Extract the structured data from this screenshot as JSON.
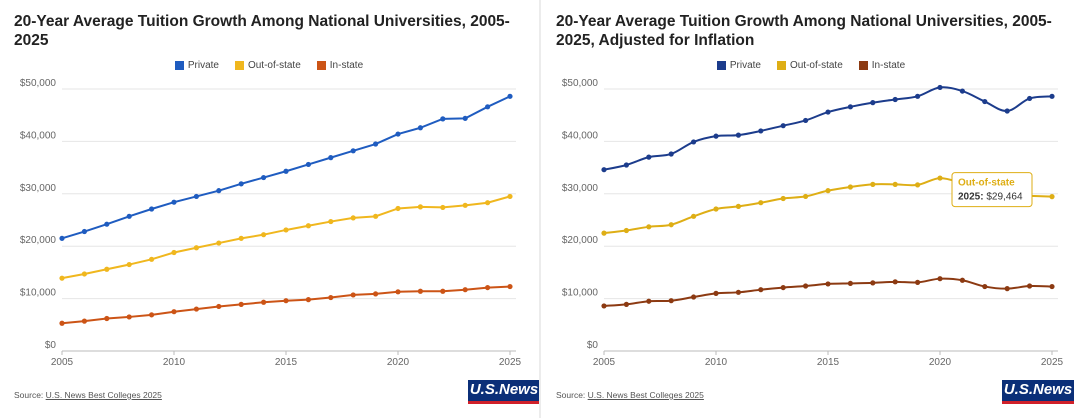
{
  "charts": [
    {
      "title": "20-Year Average Tuition Growth Among National Universities, 2005-2025",
      "source_prefix": "Source: ",
      "source_link": "U.S. News Best Colleges 2025",
      "logo": "U.S.News",
      "legend": [
        "Private",
        "Out-of-state",
        "In-state"
      ],
      "colors": {
        "private": "#1f5cc0",
        "out_of_state": "#f0b71e",
        "in_state": "#cc5416"
      }
    },
    {
      "title": "20-Year Average Tuition Growth Among National Universities, 2005-2025, Adjusted for Inflation",
      "source_prefix": "Source: ",
      "source_link": "U.S. News Best Colleges 2025",
      "logo": "U.S.News",
      "legend": [
        "Private",
        "Out-of-state",
        "In-state"
      ],
      "colors": {
        "private": "#1c3c8c",
        "out_of_state": "#deae15",
        "in_state": "#8c3a12"
      },
      "tooltip": {
        "series": "Out-of-state",
        "year": "2025",
        "value": "$29,464"
      }
    }
  ],
  "chart_data": [
    {
      "type": "line",
      "title": "20-Year Average Tuition Growth Among National Universities, 2005-2025",
      "xlabel": "",
      "ylabel": "",
      "x": [
        2005,
        2006,
        2007,
        2008,
        2009,
        2010,
        2011,
        2012,
        2013,
        2014,
        2015,
        2016,
        2017,
        2018,
        2019,
        2020,
        2021,
        2022,
        2023,
        2024,
        2025
      ],
      "xticks": [
        2005,
        2010,
        2015,
        2020,
        2025
      ],
      "ylim": [
        0,
        50000
      ],
      "yticks": [
        0,
        10000,
        20000,
        30000,
        40000,
        50000
      ],
      "ytick_labels": [
        "$0",
        "$10,000",
        "$20,000",
        "$30,000",
        "$40,000",
        "$50,000"
      ],
      "grid": true,
      "legend_position": "top-center",
      "series": [
        {
          "name": "Private",
          "values": [
            21500,
            22800,
            24200,
            25700,
            27100,
            28400,
            29500,
            30600,
            31900,
            33100,
            34300,
            35600,
            36900,
            38200,
            39500,
            41400,
            42600,
            44300,
            44400,
            46600,
            48600
          ]
        },
        {
          "name": "Out-of-state",
          "values": [
            13900,
            14700,
            15600,
            16500,
            17500,
            18800,
            19700,
            20600,
            21500,
            22200,
            23100,
            23900,
            24700,
            25400,
            25700,
            27200,
            27500,
            27400,
            27800,
            28300,
            29500
          ]
        },
        {
          "name": "In-state",
          "values": [
            5300,
            5700,
            6200,
            6500,
            6900,
            7500,
            8000,
            8500,
            8900,
            9300,
            9600,
            9800,
            10200,
            10700,
            10900,
            11300,
            11400,
            11400,
            11700,
            12100,
            12300
          ]
        }
      ]
    },
    {
      "type": "line",
      "title": "20-Year Average Tuition Growth Among National Universities, 2005-2025, Adjusted for Inflation",
      "xlabel": "",
      "ylabel": "",
      "x": [
        2005,
        2006,
        2007,
        2008,
        2009,
        2010,
        2011,
        2012,
        2013,
        2014,
        2015,
        2016,
        2017,
        2018,
        2019,
        2020,
        2021,
        2022,
        2023,
        2024,
        2025
      ],
      "xticks": [
        2005,
        2010,
        2015,
        2020,
        2025
      ],
      "ylim": [
        0,
        50000
      ],
      "yticks": [
        0,
        10000,
        20000,
        30000,
        40000,
        50000
      ],
      "ytick_labels": [
        "$0",
        "$10,000",
        "$20,000",
        "$30,000",
        "$40,000",
        "$50,000"
      ],
      "grid": true,
      "legend_position": "top-center",
      "series": [
        {
          "name": "Private",
          "values": [
            34600,
            35500,
            37000,
            37600,
            39900,
            41000,
            41200,
            42000,
            43000,
            44000,
            45600,
            46600,
            47400,
            48000,
            48600,
            50300,
            49600,
            47600,
            45800,
            48200,
            48600
          ]
        },
        {
          "name": "Out-of-state",
          "values": [
            22500,
            23000,
            23700,
            24100,
            25700,
            27100,
            27600,
            28300,
            29100,
            29500,
            30600,
            31300,
            31800,
            31800,
            31700,
            33000,
            32000,
            30800,
            29800,
            29600,
            29464
          ]
        },
        {
          "name": "In-state",
          "values": [
            8600,
            8900,
            9500,
            9600,
            10300,
            11000,
            11200,
            11700,
            12100,
            12400,
            12800,
            12900,
            13000,
            13200,
            13100,
            13800,
            13500,
            12300,
            11900,
            12400,
            12300
          ]
        }
      ]
    }
  ]
}
